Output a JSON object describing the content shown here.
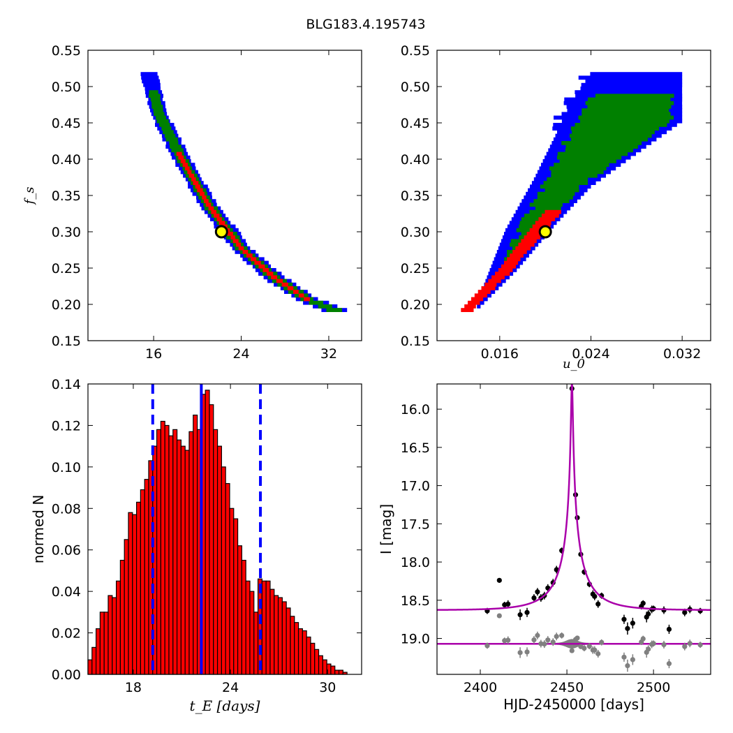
{
  "figure_title": "BLG183.4.195743",
  "colors": {
    "confidence_1sigma": "#ff0000",
    "confidence_2sigma": "#008000",
    "confidence_3sigma": "#0000ff",
    "best_fit_marker_fill": "#ffff00",
    "histogram_bar": "#ff0000",
    "histogram_edge": "#000000",
    "median_line": "#0000ff",
    "model_curve": "#aa00aa",
    "data_points": "#000000",
    "residual_points": "#808080"
  },
  "chart_data": [
    {
      "type": "heatmap",
      "panel": "tE-fs confidence region",
      "xlabel": "",
      "ylabel": "f_s",
      "xlim": [
        10,
        35
      ],
      "ylim": [
        0.15,
        0.55
      ],
      "xticks": [
        "16",
        "24",
        "32"
      ],
      "yticks": [
        "0.15",
        "0.20",
        "0.25",
        "0.30",
        "0.35",
        "0.40",
        "0.45",
        "0.50",
        "0.55"
      ],
      "best_fit": {
        "x": 22.2,
        "y": 0.3
      },
      "ridge": [
        [
          15.5,
          0.52
        ],
        [
          16.5,
          0.46
        ],
        [
          18.5,
          0.4
        ],
        [
          21,
          0.335
        ],
        [
          24,
          0.275
        ],
        [
          27,
          0.235
        ],
        [
          30,
          0.205
        ],
        [
          32.5,
          0.19
        ]
      ],
      "ridge_halfwidth": [
        0.011,
        0.025,
        0.04
      ],
      "fs_range_bands": [
        [
          0.19,
          0.52
        ],
        [
          0.19,
          0.495
        ],
        [
          0.205,
          0.41
        ]
      ]
    },
    {
      "type": "heatmap",
      "panel": "u0-fs confidence region",
      "xlabel": "u_0",
      "ylabel": "",
      "xlim": [
        0.0105,
        0.0345
      ],
      "ylim": [
        0.15,
        0.55
      ],
      "xticks": [
        "0.016",
        "0.024",
        "0.032"
      ],
      "yticks": [
        "0.15",
        "0.20",
        "0.25",
        "0.30",
        "0.35",
        "0.40",
        "0.45",
        "0.50",
        "0.55"
      ],
      "best_fit": {
        "x": 0.02,
        "y": 0.3
      },
      "ridge_lower": [
        [
          0.014,
          0.19
        ],
        [
          0.0175,
          0.245
        ],
        [
          0.021,
          0.31
        ],
        [
          0.024,
          0.36
        ],
        [
          0.0275,
          0.4
        ],
        [
          0.032,
          0.45
        ]
      ],
      "ridge_upper": [
        [
          0.014,
          0.2
        ],
        [
          0.0165,
          0.3
        ],
        [
          0.019,
          0.37
        ],
        [
          0.0215,
          0.45
        ],
        [
          0.024,
          0.515
        ]
      ],
      "fs_range_bands": [
        [
          0.19,
          0.52
        ],
        [
          0.19,
          0.49
        ],
        [
          0.19,
          0.33
        ]
      ]
    },
    {
      "type": "bar",
      "panel": "tE posterior histogram",
      "xlabel": "t_E [days]",
      "ylabel": "normed N",
      "xlim": [
        15.2,
        32.1
      ],
      "ylim": [
        0,
        0.14
      ],
      "xticks": [
        "18",
        "24",
        "30"
      ],
      "yticks": [
        "0.00",
        "0.02",
        "0.04",
        "0.06",
        "0.08",
        "0.10",
        "0.12",
        "0.14"
      ],
      "bin_start": 15.2,
      "bin_width": 0.25,
      "values": [
        0.007,
        0.013,
        0.022,
        0.03,
        0.03,
        0.038,
        0.037,
        0.045,
        0.055,
        0.065,
        0.078,
        0.077,
        0.083,
        0.089,
        0.094,
        0.103,
        0.11,
        0.118,
        0.122,
        0.12,
        0.115,
        0.118,
        0.113,
        0.11,
        0.108,
        0.117,
        0.125,
        0.118,
        0.135,
        0.137,
        0.13,
        0.118,
        0.11,
        0.1,
        0.092,
        0.08,
        0.075,
        0.062,
        0.055,
        0.045,
        0.04,
        0.03,
        0.046,
        0.045,
        0.045,
        0.041,
        0.038,
        0.037,
        0.035,
        0.032,
        0.028,
        0.025,
        0.022,
        0.021,
        0.018,
        0.015,
        0.012,
        0.009,
        0.007,
        0.005,
        0.004,
        0.002,
        0.002,
        0.001
      ],
      "median": 22.2,
      "interval": [
        19.2,
        25.85
      ]
    },
    {
      "type": "scatter",
      "panel": "light curve",
      "xlabel": "HJD-2450000 [days]",
      "ylabel": "I [mag]",
      "xlim": [
        2375,
        2533
      ],
      "ylim": [
        19.47,
        15.67
      ],
      "xticks": [
        "2400",
        "2450",
        "2500"
      ],
      "yticks": [
        "16.0",
        "16.5",
        "17.0",
        "17.5",
        "18.0",
        "18.5",
        "19.0"
      ],
      "model": {
        "t0": 2452.9,
        "tE": 22.2,
        "u0": 0.02,
        "baseline": 18.63
      },
      "residual_baseline": 19.07,
      "points": [
        {
          "x": 2404,
          "y": 18.64,
          "err": 0.04
        },
        {
          "x": 2411,
          "y": 18.24,
          "err": 0.02
        },
        {
          "x": 2414,
          "y": 18.56,
          "err": 0.04
        },
        {
          "x": 2416,
          "y": 18.55,
          "err": 0.05
        },
        {
          "x": 2423,
          "y": 18.69,
          "err": 0.07
        },
        {
          "x": 2427,
          "y": 18.66,
          "err": 0.06
        },
        {
          "x": 2431,
          "y": 18.47,
          "err": 0.05
        },
        {
          "x": 2433,
          "y": 18.39,
          "err": 0.05
        },
        {
          "x": 2435,
          "y": 18.47,
          "err": 0.05
        },
        {
          "x": 2437,
          "y": 18.44,
          "err": 0.05
        },
        {
          "x": 2439,
          "y": 18.34,
          "err": 0.05
        },
        {
          "x": 2442,
          "y": 18.27,
          "err": 0.05
        },
        {
          "x": 2444,
          "y": 18.1,
          "err": 0.05
        },
        {
          "x": 2447,
          "y": 17.85,
          "err": 0.04
        },
        {
          "x": 2452.9,
          "y": 15.73,
          "err": 0.03
        },
        {
          "x": 2455,
          "y": 17.12,
          "err": 0.03
        },
        {
          "x": 2456,
          "y": 17.42,
          "err": 0.03
        },
        {
          "x": 2458,
          "y": 17.9,
          "err": 0.03
        },
        {
          "x": 2460,
          "y": 18.13,
          "err": 0.04
        },
        {
          "x": 2463,
          "y": 18.29,
          "err": 0.04
        },
        {
          "x": 2465,
          "y": 18.42,
          "err": 0.05
        },
        {
          "x": 2466,
          "y": 18.45,
          "err": 0.05
        },
        {
          "x": 2468,
          "y": 18.55,
          "err": 0.05
        },
        {
          "x": 2470,
          "y": 18.44,
          "err": 0.04
        },
        {
          "x": 2483,
          "y": 18.75,
          "err": 0.06
        },
        {
          "x": 2485,
          "y": 18.87,
          "err": 0.08
        },
        {
          "x": 2488,
          "y": 18.8,
          "err": 0.07
        },
        {
          "x": 2493,
          "y": 18.58,
          "err": 0.04
        },
        {
          "x": 2494,
          "y": 18.54,
          "err": 0.04
        },
        {
          "x": 2496,
          "y": 18.72,
          "err": 0.07
        },
        {
          "x": 2497,
          "y": 18.68,
          "err": 0.05
        },
        {
          "x": 2499,
          "y": 18.62,
          "err": 0.05
        },
        {
          "x": 2500,
          "y": 18.61,
          "err": 0.04
        },
        {
          "x": 2506,
          "y": 18.63,
          "err": 0.05
        },
        {
          "x": 2509,
          "y": 18.88,
          "err": 0.06
        },
        {
          "x": 2518,
          "y": 18.66,
          "err": 0.05
        },
        {
          "x": 2521,
          "y": 18.62,
          "err": 0.05
        },
        {
          "x": 2527,
          "y": 18.64,
          "err": 0.04
        }
      ]
    }
  ]
}
